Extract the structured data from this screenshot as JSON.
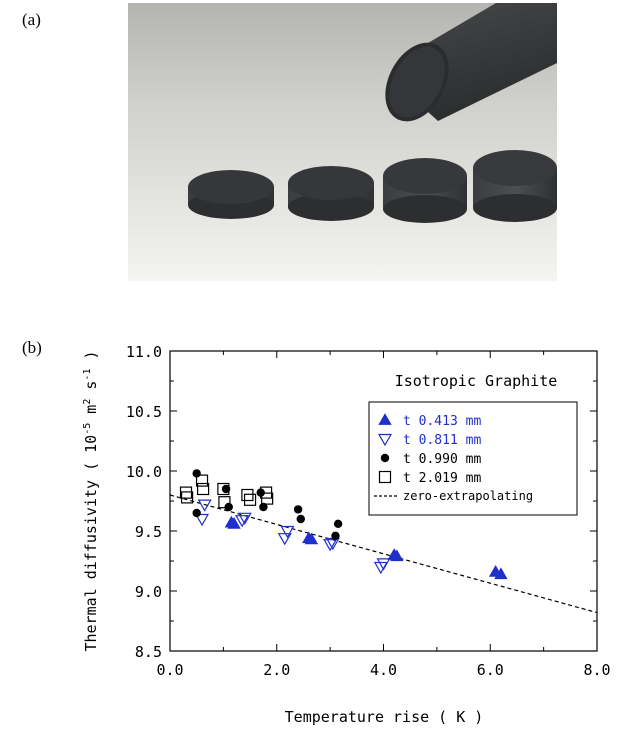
{
  "panel_a": {
    "label": "(a)"
  },
  "panel_b": {
    "label": "(b)"
  },
  "chart_data": {
    "type": "scatter",
    "title": "Isotropic Graphite",
    "xlabel": "Temperature rise ( K )",
    "ylabel": "Thermal diffusivity ( 10",
    "ylabel_exp1": "-5",
    "ylabel_mid": " m",
    "ylabel_exp2": "2",
    "ylabel_mid2": " s",
    "ylabel_exp3": "-1",
    "ylabel_end": " )",
    "xlim": [
      0.0,
      8.0
    ],
    "ylim": [
      8.5,
      11.0
    ],
    "x_ticks": [
      "0.0",
      "2.0",
      "4.0",
      "6.0",
      "8.0"
    ],
    "x_tick_values": [
      0,
      2,
      4,
      6,
      8
    ],
    "y_ticks": [
      "8.5",
      "9.0",
      "9.5",
      "10.0",
      "10.5",
      "11.0"
    ],
    "y_tick_values": [
      8.5,
      9.0,
      9.5,
      10.0,
      10.5,
      11.0
    ],
    "legend_position": "top-right",
    "series": [
      {
        "name": "t 0.413 mm",
        "marker": "triangle-up-filled",
        "color": "#1f2fcc",
        "x": [
          1.15,
          1.2,
          2.6,
          2.65,
          4.2,
          4.25,
          6.1,
          6.2
        ],
        "y": [
          9.57,
          9.56,
          9.44,
          9.43,
          9.3,
          9.29,
          9.16,
          9.14
        ]
      },
      {
        "name": "t 0.811 mm",
        "marker": "triangle-down-open",
        "color": "#1f2fcc",
        "x": [
          0.6,
          0.65,
          1.35,
          1.4,
          2.15,
          2.2,
          3.0,
          3.05,
          3.95,
          4.0
        ],
        "y": [
          9.6,
          9.72,
          9.59,
          9.61,
          9.44,
          9.5,
          9.39,
          9.4,
          9.2,
          9.23
        ]
      },
      {
        "name": "t 0.990 mm",
        "marker": "circle-filled",
        "color": "#000000",
        "x": [
          0.5,
          0.5,
          1.05,
          1.1,
          1.7,
          1.75,
          2.4,
          2.45,
          3.1,
          3.15
        ],
        "y": [
          9.98,
          9.65,
          9.85,
          9.7,
          9.82,
          9.7,
          9.68,
          9.6,
          9.46,
          9.56
        ]
      },
      {
        "name": "t 2.019 mm",
        "marker": "square-open",
        "color": "#000000",
        "x": [
          0.3,
          0.32,
          0.6,
          0.62,
          1.0,
          1.02,
          1.45,
          1.5,
          1.8,
          1.82
        ],
        "y": [
          9.82,
          9.78,
          9.92,
          9.85,
          9.85,
          9.74,
          9.8,
          9.76,
          9.82,
          9.77
        ]
      }
    ],
    "fit_line": {
      "name": "zero-extrapolating",
      "style": "dashed",
      "color": "#000000",
      "x": [
        0.0,
        8.0
      ],
      "y": [
        9.8,
        8.82
      ]
    }
  },
  "colors": {
    "photo_bg_top": "#b8b9b5",
    "photo_bg_bottom": "#f2f2ee",
    "sample": "#3c3e40",
    "sample_dark": "#232527"
  }
}
